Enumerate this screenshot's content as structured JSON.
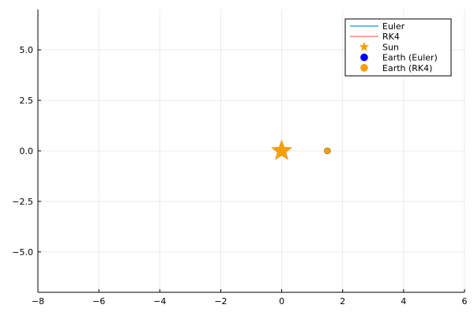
{
  "chart_data": {
    "type": "scatter",
    "title": "",
    "xlabel": "",
    "ylabel": "",
    "xlim": [
      -8,
      6
    ],
    "ylim": [
      -7,
      7
    ],
    "xticks": [
      -8,
      -6,
      -4,
      -2,
      0,
      2,
      4,
      6
    ],
    "yticks": [
      -5.0,
      -2.5,
      0.0,
      2.5,
      5.0
    ],
    "xtick_labels": [
      "−8",
      "−6",
      "−4",
      "−2",
      "0",
      "2",
      "4",
      "6"
    ],
    "ytick_labels": [
      "−5.0",
      "−2.5",
      "0.0",
      "2.5",
      "5.0"
    ],
    "grid": true,
    "legend_position": "top-right",
    "series": [
      {
        "name": "Euler",
        "kind": "line",
        "color": "#009AFA",
        "x": [],
        "y": []
      },
      {
        "name": "RK4",
        "kind": "line",
        "color": "#E36F47",
        "x": [],
        "y": []
      },
      {
        "name": "Sun",
        "kind": "marker",
        "marker": "star",
        "color": "#F5A00B",
        "x": [
          0
        ],
        "y": [
          0
        ]
      },
      {
        "name": "Earth (Euler)",
        "kind": "marker",
        "marker": "circle",
        "color": "#0000FF",
        "x": [
          1.5
        ],
        "y": [
          0
        ]
      },
      {
        "name": "Earth (RK4)",
        "kind": "marker",
        "marker": "circle",
        "color": "#F5A00B",
        "x": [
          1.5
        ],
        "y": [
          0
        ]
      }
    ]
  }
}
